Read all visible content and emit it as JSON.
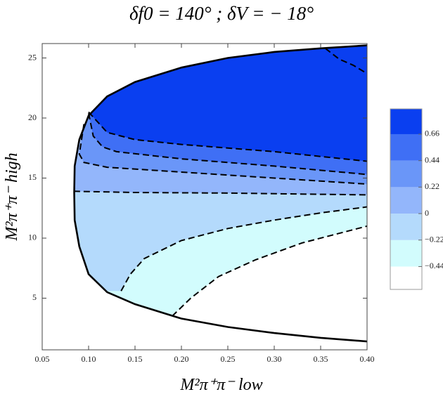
{
  "chart_data": {
    "type": "contour",
    "title": "δf0 = 140° ; δV = − 18°",
    "x_label": "M²π⁺π⁻ low",
    "y_label": "M²π⁺π⁻ high",
    "xlim": [
      0.05,
      0.4
    ],
    "ylim": [
      0.7,
      26.2
    ],
    "xticks": [
      0.05,
      {
        "value": 0.1,
        "label": "0.10"
      },
      0.15,
      {
        "value": 0.2,
        "label": "0.20"
      },
      0.25,
      {
        "value": 0.3,
        "label": "0.30"
      },
      0.35,
      {
        "value": 0.4,
        "label": "0.40"
      }
    ],
    "yticks": [
      5,
      10,
      15,
      20,
      25
    ],
    "clim": [
      -0.63,
      0.87
    ],
    "cticks": [
      {
        "value": -0.44,
        "label": "−0.44"
      },
      {
        "value": -0.22,
        "label": "−0.22"
      },
      0,
      0.22,
      0.44,
      0.66
    ],
    "band_colors": [
      "#ffffff",
      "#d2fcfd",
      "#b4dafc",
      "#93b6fb",
      "#6a96f8",
      "#3f6ff5",
      "#0a3ff0"
    ],
    "boundary": {
      "x": [
        0.4,
        0.35,
        0.3,
        0.25,
        0.2,
        0.15,
        0.12,
        0.1,
        0.09,
        0.085,
        0.0845,
        0.085,
        0.09,
        0.1,
        0.12,
        0.15,
        0.2,
        0.25,
        0.3,
        0.35,
        0.4
      ],
      "y": [
        26.05,
        25.8,
        25.5,
        25.0,
        24.2,
        23.0,
        21.8,
        20.2,
        18.2,
        16.0,
        13.8,
        11.5,
        9.3,
        7.0,
        5.5,
        4.5,
        3.3,
        2.6,
        2.1,
        1.7,
        1.4
      ]
    },
    "contours": [
      {
        "level": -0.44,
        "x": [
          0.19,
          0.21,
          0.24,
          0.28,
          0.33,
          0.4
        ],
        "y": [
          3.5,
          5.0,
          6.8,
          8.2,
          9.6,
          11.0
        ]
      },
      {
        "level": -0.22,
        "x": [
          0.135,
          0.145,
          0.16,
          0.2,
          0.25,
          0.3,
          0.35,
          0.4
        ],
        "y": [
          5.6,
          7.0,
          8.3,
          9.8,
          10.8,
          11.5,
          12.1,
          12.6
        ]
      },
      {
        "level": 0,
        "x": [
          0.084,
          0.15,
          0.25,
          0.4
        ],
        "y": [
          13.9,
          13.8,
          13.75,
          13.6
        ]
      },
      {
        "level": 0.22,
        "x": [
          0.095,
          0.09,
          0.095,
          0.12,
          0.2,
          0.3,
          0.4
        ],
        "y": [
          19.5,
          17.0,
          16.3,
          15.9,
          15.5,
          15.0,
          14.5
        ]
      },
      {
        "level": 0.44,
        "x": [
          0.1,
          0.105,
          0.115,
          0.13,
          0.2,
          0.3,
          0.4
        ],
        "y": [
          20.4,
          18.5,
          17.6,
          17.2,
          16.6,
          16.0,
          15.3
        ]
      },
      {
        "level": 0.66,
        "x": [
          0.1,
          0.12,
          0.15,
          0.2,
          0.25,
          0.3,
          0.35,
          0.4
        ],
        "y": [
          20.5,
          18.8,
          18.2,
          17.8,
          17.5,
          17.2,
          16.8,
          16.4
        ]
      },
      {
        "level": 0.66,
        "x": [
          0.355,
          0.37,
          0.385,
          0.4
        ],
        "y": [
          25.8,
          24.9,
          24.4,
          23.7
        ]
      }
    ]
  }
}
